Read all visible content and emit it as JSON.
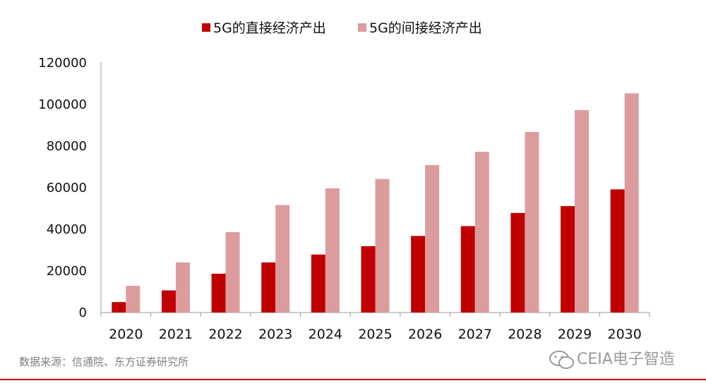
{
  "chart_data": {
    "type": "bar",
    "categories": [
      "2020",
      "2021",
      "2022",
      "2023",
      "2024",
      "2025",
      "2026",
      "2027",
      "2028",
      "2029",
      "2030"
    ],
    "series": [
      {
        "name": "5G的直接经济产出",
        "color": "#c00000",
        "values": [
          5000,
          10600,
          18600,
          24000,
          27800,
          31800,
          36700,
          41400,
          47700,
          51000,
          59000
        ]
      },
      {
        "name": "5G的间接经济产出",
        "color": "#dc9c9e",
        "values": [
          12800,
          24000,
          38500,
          51500,
          59500,
          64000,
          70700,
          77000,
          86500,
          97000,
          105000
        ]
      }
    ],
    "yticks": [
      "0",
      "20000",
      "40000",
      "60000",
      "80000",
      "100000",
      "120000"
    ],
    "ylim": [
      0,
      120000
    ],
    "legend_position": "top-center",
    "grid": false
  },
  "source": "数据来源：信通院、东方证券研究所",
  "watermark": {
    "text": "CEIA电子智造",
    "icon": "wechat-icon",
    "color": "#9a9a9a"
  },
  "footer_rule_color": "#c00000"
}
